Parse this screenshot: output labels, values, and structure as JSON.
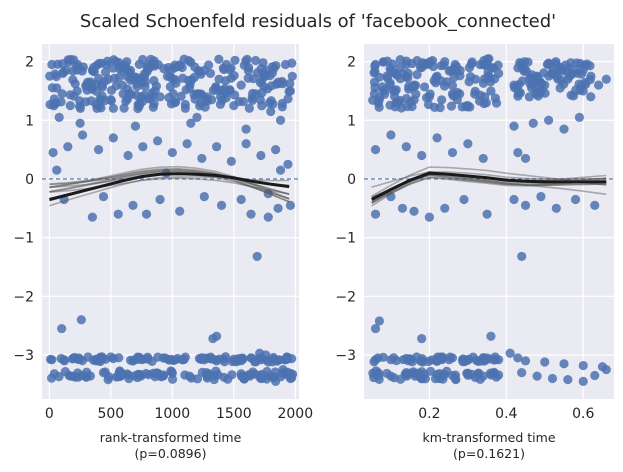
{
  "figure": {
    "title": "Scaled Schoenfeld residuals of 'facebook_connected'",
    "background": "#ffffff",
    "panel_color": "#eaeaf2",
    "grid_color": "#ffffff",
    "point_color": "#4c72b0",
    "smooth_color": "#1a1a1a",
    "ref_line_color": "#4c72b0"
  },
  "chart_data": [
    {
      "type": "scatter",
      "title": "",
      "xlabel": "rank-transformed time",
      "xlabel_note": "(p=0.0896)",
      "ylabel": "",
      "xlim": [
        -60,
        2030
      ],
      "ylim": [
        -3.75,
        2.3
      ],
      "xticks": [
        0,
        500,
        1000,
        1500,
        2000
      ],
      "xtick_labels": [
        "0",
        "500",
        "1000",
        "1500",
        "2000"
      ],
      "yticks": [
        -3,
        -2,
        -1,
        0,
        1,
        2
      ],
      "ytick_labels": [
        "−3",
        "−2",
        "−1",
        "0",
        "1",
        "2"
      ],
      "grid": true,
      "points": [
        [
          20,
          1.95
        ],
        [
          60,
          1.55
        ],
        [
          110,
          1.8
        ],
        [
          170,
          1.25
        ],
        [
          230,
          1.95
        ],
        [
          300,
          1.6
        ],
        [
          360,
          1.9
        ],
        [
          420,
          1.35
        ],
        [
          480,
          1.7
        ],
        [
          540,
          2.0
        ],
        [
          600,
          1.45
        ],
        [
          660,
          1.85
        ],
        [
          720,
          1.2
        ],
        [
          780,
          1.65
        ],
        [
          840,
          1.95
        ],
        [
          900,
          1.4
        ],
        [
          960,
          1.75
        ],
        [
          1020,
          1.3
        ],
        [
          1080,
          1.9
        ],
        [
          1140,
          1.55
        ],
        [
          1200,
          1.05
        ],
        [
          1260,
          1.85
        ],
        [
          1320,
          1.35
        ],
        [
          1380,
          1.7
        ],
        [
          1440,
          1.95
        ],
        [
          1500,
          1.25
        ],
        [
          1560,
          1.6
        ],
        [
          1620,
          1.9
        ],
        [
          1680,
          1.45
        ],
        [
          1740,
          1.8
        ],
        [
          1800,
          1.15
        ],
        [
          1860,
          1.65
        ],
        [
          1920,
          1.95
        ],
        [
          1960,
          1.5
        ],
        [
          80,
          1.05
        ],
        [
          250,
          0.95
        ],
        [
          700,
          0.9
        ],
        [
          1150,
          0.95
        ],
        [
          1600,
          0.85
        ],
        [
          1880,
          1.0
        ],
        [
          30,
          0.45
        ],
        [
          150,
          0.55
        ],
        [
          270,
          0.75
        ],
        [
          400,
          0.5
        ],
        [
          520,
          0.7
        ],
        [
          640,
          0.4
        ],
        [
          760,
          0.55
        ],
        [
          880,
          0.65
        ],
        [
          1000,
          0.45
        ],
        [
          1120,
          0.6
        ],
        [
          1240,
          0.35
        ],
        [
          1360,
          0.55
        ],
        [
          1480,
          0.3
        ],
        [
          1600,
          0.6
        ],
        [
          1720,
          0.4
        ],
        [
          1840,
          0.5
        ],
        [
          1940,
          0.25
        ],
        [
          60,
          0.15
        ],
        [
          950,
          0.1
        ],
        [
          1880,
          0.15
        ],
        [
          120,
          -0.35
        ],
        [
          350,
          -0.65
        ],
        [
          440,
          -0.3
        ],
        [
          560,
          -0.6
        ],
        [
          680,
          -0.45
        ],
        [
          790,
          -0.6
        ],
        [
          900,
          -0.35
        ],
        [
          1060,
          -0.55
        ],
        [
          1260,
          -0.3
        ],
        [
          1400,
          -0.45
        ],
        [
          1560,
          -0.35
        ],
        [
          1640,
          -0.6
        ],
        [
          1780,
          -0.25
        ],
        [
          1860,
          -0.5
        ],
        [
          1960,
          -0.45
        ],
        [
          1780,
          -0.65
        ],
        [
          1690,
          -1.32
        ],
        [
          100,
          -2.55
        ],
        [
          260,
          -2.4
        ],
        [
          1330,
          -2.72
        ],
        [
          1360,
          -2.68
        ],
        [
          1710,
          -2.97
        ],
        [
          1760,
          -3.0
        ],
        [
          20,
          -3.08
        ],
        [
          120,
          -3.08
        ],
        [
          240,
          -3.05
        ],
        [
          380,
          -3.1
        ],
        [
          520,
          -3.06
        ],
        [
          660,
          -3.09
        ],
        [
          800,
          -3.07
        ],
        [
          940,
          -3.05
        ],
        [
          1080,
          -3.08
        ],
        [
          1220,
          -3.06
        ],
        [
          1360,
          -3.1
        ],
        [
          1500,
          -3.07
        ],
        [
          1640,
          -3.05
        ],
        [
          1780,
          -3.12
        ],
        [
          1920,
          -3.08
        ],
        [
          40,
          -3.32
        ],
        [
          160,
          -3.35
        ],
        [
          300,
          -3.38
        ],
        [
          440,
          -3.3
        ],
        [
          580,
          -3.36
        ],
        [
          720,
          -3.33
        ],
        [
          860,
          -3.37
        ],
        [
          1000,
          -3.31
        ],
        [
          1140,
          -3.36
        ],
        [
          1280,
          -3.34
        ],
        [
          1420,
          -3.38
        ],
        [
          1560,
          -3.32
        ],
        [
          1700,
          -3.35
        ],
        [
          1840,
          -3.45
        ],
        [
          1960,
          -3.4
        ],
        [
          1900,
          -3.25
        ]
      ],
      "points_rendered_note": "",
      "dense_bands": [
        {
          "x": [
            0,
            1980
          ],
          "y": [
            1.2,
            2.05
          ]
        },
        {
          "x": [
            0,
            1980
          ],
          "y": [
            -3.12,
            -3.03
          ]
        },
        {
          "x": [
            0,
            1980
          ],
          "y": [
            -3.42,
            -3.27
          ]
        }
      ],
      "reference_line_y": 0,
      "smooth_line": {
        "x": [
          0,
          150,
          300,
          450,
          600,
          750,
          900,
          1050,
          1200,
          1350,
          1500,
          1650,
          1800,
          1950
        ],
        "y": [
          -0.35,
          -0.27,
          -0.19,
          -0.11,
          -0.03,
          0.04,
          0.08,
          0.09,
          0.08,
          0.06,
          0.02,
          -0.04,
          -0.09,
          -0.13
        ]
      }
    },
    {
      "type": "scatter",
      "title": "",
      "xlabel": "km-transformed time",
      "xlabel_note": "(p=0.1621)",
      "ylabel": "",
      "xlim": [
        0.03,
        0.68
      ],
      "ylim": [
        -3.75,
        2.3
      ],
      "xticks": [
        0.2,
        0.4,
        0.6
      ],
      "xtick_labels": [
        "0.2",
        "0.4",
        "0.6"
      ],
      "yticks": [
        -3,
        -2,
        -1,
        0,
        1,
        2
      ],
      "ytick_labels": [
        "−3",
        "−2",
        "−1",
        "0",
        "1",
        "2"
      ],
      "grid": true,
      "points": [
        [
          0.06,
          1.95
        ],
        [
          0.08,
          1.5
        ],
        [
          0.1,
          1.85
        ],
        [
          0.12,
          1.3
        ],
        [
          0.14,
          1.95
        ],
        [
          0.16,
          1.6
        ],
        [
          0.18,
          1.9
        ],
        [
          0.2,
          1.4
        ],
        [
          0.22,
          1.75
        ],
        [
          0.24,
          2.0
        ],
        [
          0.26,
          1.45
        ],
        [
          0.28,
          1.85
        ],
        [
          0.3,
          1.25
        ],
        [
          0.32,
          1.7
        ],
        [
          0.34,
          1.95
        ],
        [
          0.36,
          1.5
        ],
        [
          0.38,
          1.8
        ],
        [
          0.42,
          1.6
        ],
        [
          0.44,
          1.95
        ],
        [
          0.46,
          1.4
        ],
        [
          0.48,
          1.75
        ],
        [
          0.5,
          1.6
        ],
        [
          0.52,
          1.9
        ],
        [
          0.54,
          1.55
        ],
        [
          0.56,
          1.7
        ],
        [
          0.58,
          1.85
        ],
        [
          0.6,
          1.5
        ],
        [
          0.62,
          1.75
        ],
        [
          0.64,
          1.6
        ],
        [
          0.66,
          1.7
        ],
        [
          0.06,
          0.5
        ],
        [
          0.1,
          0.75
        ],
        [
          0.14,
          0.55
        ],
        [
          0.18,
          0.4
        ],
        [
          0.22,
          0.7
        ],
        [
          0.26,
          0.45
        ],
        [
          0.3,
          0.6
        ],
        [
          0.34,
          0.35
        ],
        [
          0.43,
          0.45
        ],
        [
          0.47,
          0.95
        ],
        [
          0.51,
          1.0
        ],
        [
          0.55,
          0.85
        ],
        [
          0.59,
          1.05
        ],
        [
          0.42,
          0.9
        ],
        [
          0.45,
          0.35
        ],
        [
          0.06,
          -0.6
        ],
        [
          0.1,
          -0.3
        ],
        [
          0.13,
          -0.5
        ],
        [
          0.16,
          -0.55
        ],
        [
          0.2,
          -0.65
        ],
        [
          0.24,
          -0.5
        ],
        [
          0.29,
          -0.35
        ],
        [
          0.35,
          -0.6
        ],
        [
          0.42,
          -0.35
        ],
        [
          0.45,
          -0.45
        ],
        [
          0.49,
          -0.3
        ],
        [
          0.53,
          -0.5
        ],
        [
          0.58,
          -0.35
        ],
        [
          0.63,
          -0.45
        ],
        [
          0.44,
          -1.32
        ],
        [
          0.06,
          -2.55
        ],
        [
          0.07,
          -2.42
        ],
        [
          0.18,
          -2.72
        ],
        [
          0.36,
          -2.68
        ],
        [
          0.41,
          -2.97
        ],
        [
          0.43,
          -3.05
        ],
        [
          0.06,
          -3.08
        ],
        [
          0.1,
          -3.08
        ],
        [
          0.14,
          -3.06
        ],
        [
          0.18,
          -3.1
        ],
        [
          0.22,
          -3.07
        ],
        [
          0.26,
          -3.05
        ],
        [
          0.3,
          -3.09
        ],
        [
          0.34,
          -3.06
        ],
        [
          0.38,
          -3.08
        ],
        [
          0.45,
          -3.1
        ],
        [
          0.5,
          -3.12
        ],
        [
          0.55,
          -3.15
        ],
        [
          0.6,
          -3.18
        ],
        [
          0.65,
          -3.2
        ],
        [
          0.06,
          -3.32
        ],
        [
          0.1,
          -3.36
        ],
        [
          0.14,
          -3.3
        ],
        [
          0.18,
          -3.37
        ],
        [
          0.22,
          -3.33
        ],
        [
          0.26,
          -3.35
        ],
        [
          0.3,
          -3.31
        ],
        [
          0.34,
          -3.36
        ],
        [
          0.38,
          -3.34
        ],
        [
          0.44,
          -3.3
        ],
        [
          0.48,
          -3.36
        ],
        [
          0.52,
          -3.4
        ],
        [
          0.56,
          -3.42
        ],
        [
          0.6,
          -3.45
        ],
        [
          0.63,
          -3.35
        ],
        [
          0.66,
          -3.25
        ]
      ],
      "dense_bands": [
        {
          "x": [
            0.05,
            0.38
          ],
          "y": [
            1.2,
            2.05
          ]
        },
        {
          "x": [
            0.42,
            0.62
          ],
          "y": [
            1.4,
            2.0
          ]
        },
        {
          "x": [
            0.05,
            0.38
          ],
          "y": [
            -3.12,
            -3.03
          ]
        },
        {
          "x": [
            0.05,
            0.38
          ],
          "y": [
            -3.42,
            -3.27
          ]
        }
      ],
      "reference_line_y": 0,
      "smooth_line": {
        "x": [
          0.05,
          0.1,
          0.15,
          0.2,
          0.25,
          0.3,
          0.35,
          0.4,
          0.45,
          0.5,
          0.55,
          0.6,
          0.66
        ],
        "y": [
          -0.35,
          -0.18,
          -0.02,
          0.1,
          0.08,
          0.05,
          0.02,
          -0.02,
          -0.04,
          -0.05,
          -0.05,
          -0.05,
          -0.05
        ]
      }
    }
  ]
}
